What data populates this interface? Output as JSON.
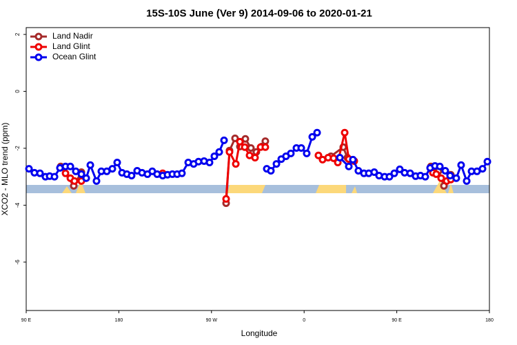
{
  "chart_data": {
    "type": "line",
    "title": "15S-10S June (Ver 9)   2014-09-06 to 2020-01-21",
    "xlabel": "Longitude",
    "ylabel": "XCO2 - MLO trend (ppm)",
    "xlim": [
      90,
      540
    ],
    "ylim": [
      -7.7,
      2.24
    ],
    "xticks": [
      {
        "value": 90,
        "label": "90 E"
      },
      180,
      {
        "value": 270,
        "label": "90 W"
      },
      {
        "value": 360,
        "label": "0"
      },
      {
        "value": 450,
        "label": "90 E"
      },
      {
        "value": 540,
        "label": "180"
      }
    ],
    "yticks": [
      -6,
      -4,
      -2,
      0,
      2
    ],
    "legend": "top-left",
    "series": [
      {
        "name": "Land Nadir",
        "color": "#a52a2a",
        "x": [
          123.5,
          136.2,
          143.6,
          null,
          284.2,
          287.5,
          292.9,
          297.6,
          302.9,
          308.3,
          313.6,
          319,
          322.3,
          null,
          386,
          398,
          402,
          null,
          483.1,
          490.4,
          495.8,
          502.5
        ],
        "values": [
          -2.64,
          -3.32,
          -2.84,
          null,
          -3.93,
          -2.08,
          -1.65,
          -1.94,
          -1.67,
          -1.99,
          -2.13,
          -1.94,
          -1.75,
          null,
          -2.28,
          -1.96,
          -2.33,
          null,
          -2.64,
          -2.81,
          -3.32,
          -2.93
        ]
      },
      {
        "name": "Land Glint",
        "color": "#ee0000",
        "x": [
          128.2,
          132.9,
          136.9,
          143.6,
          null,
          222.6,
          null,
          284.2,
          287.5,
          293.6,
          297.6,
          302.3,
          307,
          312.3,
          317.7,
          322.3,
          null,
          373.9,
          377.9,
          383.3,
          388.6,
          392.7,
          399.4,
          403.4,
          408.7,
          null,
          485.1,
          488.4,
          493.1,
          498.5,
          502.5
        ],
        "values": [
          -2.88,
          -3.05,
          -3.15,
          -3.15,
          null,
          -2.88,
          null,
          -3.78,
          -2.13,
          -2.55,
          -1.77,
          -1.96,
          -2.25,
          -2.33,
          -1.96,
          -1.96,
          null,
          -2.25,
          -2.4,
          -2.33,
          -2.35,
          -2.5,
          -1.45,
          -2.38,
          -2.45,
          null,
          -2.86,
          -2.91,
          -3.05,
          -3.15,
          -3.1
        ]
      },
      {
        "name": "Ocean Glint",
        "color": "#0000ee",
        "x": [
          92.7,
          98,
          103.4,
          108.7,
          112.8,
          117.5,
          122.8,
          128.2,
          132.9,
          138.2,
          143.6,
          148.3,
          152.3,
          158.3,
          163,
          168.3,
          173.7,
          178.4,
          183.1,
          187.8,
          192.4,
          197.8,
          202.5,
          207.8,
          212.5,
          217.2,
          222.6,
          227.3,
          232,
          236.6,
          241.3,
          247.4,
          252.7,
          257.4,
          262.8,
          268.1,
          272.8,
          277.5,
          282.2,
          null,
          323.7,
          327.7,
          333.1,
          337.8,
          342.4,
          347.1,
          352.5,
          357.2,
          362.5,
          367.9,
          372.6,
          null,
          394.7,
          403.4,
          407.4,
          412.7,
          418.1,
          422.8,
          428.1,
          432.8,
          438.2,
          442.9,
          447.6,
          452.9,
          457.6,
          463,
          468.3,
          473,
          477.7,
          482.4,
          487.1,
          491.8,
          497.1,
          501.8,
          507.8,
          512.5,
          517.9,
          522.6,
          527.9,
          533.3,
          538
        ],
        "values": [
          -2.72,
          -2.86,
          -2.88,
          -3.0,
          -2.98,
          -3.0,
          -2.69,
          -2.64,
          -2.64,
          -2.81,
          -2.91,
          -3.05,
          -2.59,
          -3.15,
          -2.81,
          -2.81,
          -2.72,
          -2.5,
          -2.86,
          -2.91,
          -2.96,
          -2.79,
          -2.86,
          -2.91,
          -2.81,
          -2.91,
          -2.96,
          -2.93,
          -2.91,
          -2.91,
          -2.88,
          -2.5,
          -2.55,
          -2.47,
          -2.45,
          -2.5,
          -2.28,
          -2.13,
          -1.72,
          null,
          -2.72,
          -2.79,
          -2.55,
          -2.38,
          -2.28,
          -2.18,
          -1.99,
          -1.99,
          -2.18,
          -1.6,
          -1.45,
          null,
          -2.33,
          -2.64,
          -2.4,
          -2.79,
          -2.88,
          -2.88,
          -2.84,
          -2.96,
          -3.0,
          -3.0,
          -2.88,
          -2.74,
          -2.86,
          -2.88,
          -2.98,
          -2.96,
          -3.0,
          -2.69,
          -2.62,
          -2.64,
          -2.79,
          -2.96,
          -3.05,
          -2.59,
          -3.15,
          -2.81,
          -2.81,
          -2.72,
          -2.47
        ]
      }
    ]
  }
}
